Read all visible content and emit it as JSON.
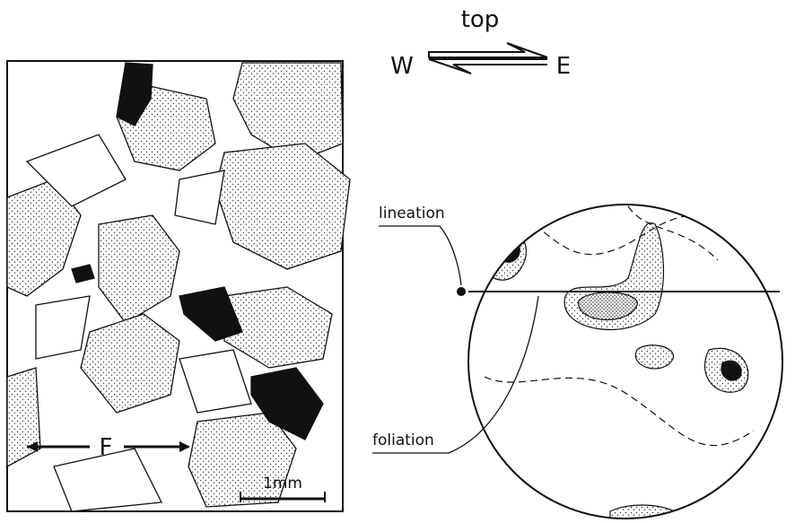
{
  "shear_sense": {
    "top": "top",
    "west": "W",
    "east": "E"
  },
  "microstructure": {
    "flattening": "F",
    "scale_bar": "1mm"
  },
  "pole_figure": {
    "lineation": "lineation",
    "foliation": "foliation"
  }
}
